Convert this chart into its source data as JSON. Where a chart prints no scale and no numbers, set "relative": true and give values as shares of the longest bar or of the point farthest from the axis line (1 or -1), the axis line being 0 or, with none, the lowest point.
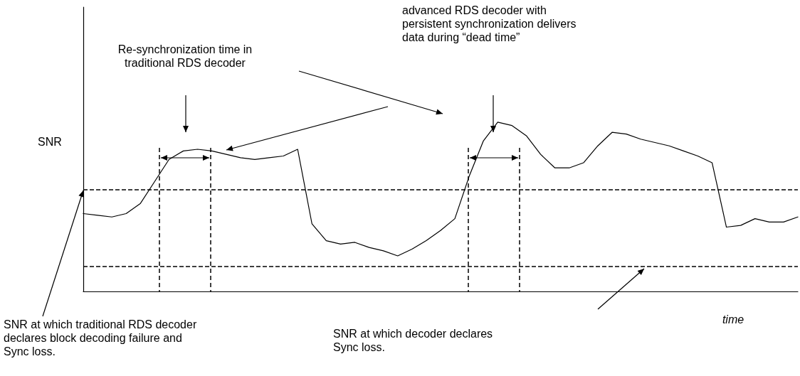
{
  "chart_data": {
    "type": "line",
    "relative": true,
    "xlabel": "time",
    "ylabel": "SNR",
    "annotations": [
      "Re-synchronization time in traditional RDS decoder",
      "advanced RDS decoder with persistent synchronization delivers data during “dead time”",
      "SNR at which traditional RDS decoder declares block decoding failure and Sync loss.",
      "SNR at which decoder declares Sync loss."
    ],
    "categories": [
      null,
      null,
      null,
      null,
      null,
      null,
      null,
      null,
      null,
      null,
      null,
      null,
      null,
      null,
      null,
      null,
      null,
      null,
      null,
      null,
      null,
      null,
      null,
      null,
      null,
      null,
      null,
      null,
      null,
      null,
      null,
      null,
      null,
      null,
      null,
      null,
      null,
      null,
      null,
      null,
      null,
      null,
      null,
      null,
      null,
      null,
      null,
      null,
      null,
      null,
      null
    ],
    "marker": "none",
    "line_style": "solid",
    "series": [
      {
        "color": "#000000",
        "values": [
          0.46,
          0.45,
          0.44,
          0.46,
          0.52,
          0.65,
          0.78,
          0.83,
          0.84,
          0.83,
          0.81,
          0.79,
          0.78,
          0.79,
          0.8,
          0.84,
          0.4,
          0.3,
          0.28,
          0.29,
          0.26,
          0.24,
          0.21,
          0.25,
          0.3,
          0.36,
          0.43,
          0.68,
          0.89,
          1,
          0.98,
          0.92,
          0.81,
          0.73,
          0.73,
          0.76,
          0.86,
          0.94,
          0.93,
          0.9,
          0.88,
          0.86,
          0.83,
          0.8,
          0.76,
          0.38,
          0.39,
          0.43,
          0.41,
          0.41,
          0.44
        ]
      }
    ],
    "ref_lines": [
      {
        "axis": "y",
        "value": 0.605,
        "color": "#000000",
        "line_style": "dashed"
      },
      {
        "axis": "y",
        "value": 0.151,
        "color": "#000000",
        "line_style": "dashed"
      }
    ]
  }
}
